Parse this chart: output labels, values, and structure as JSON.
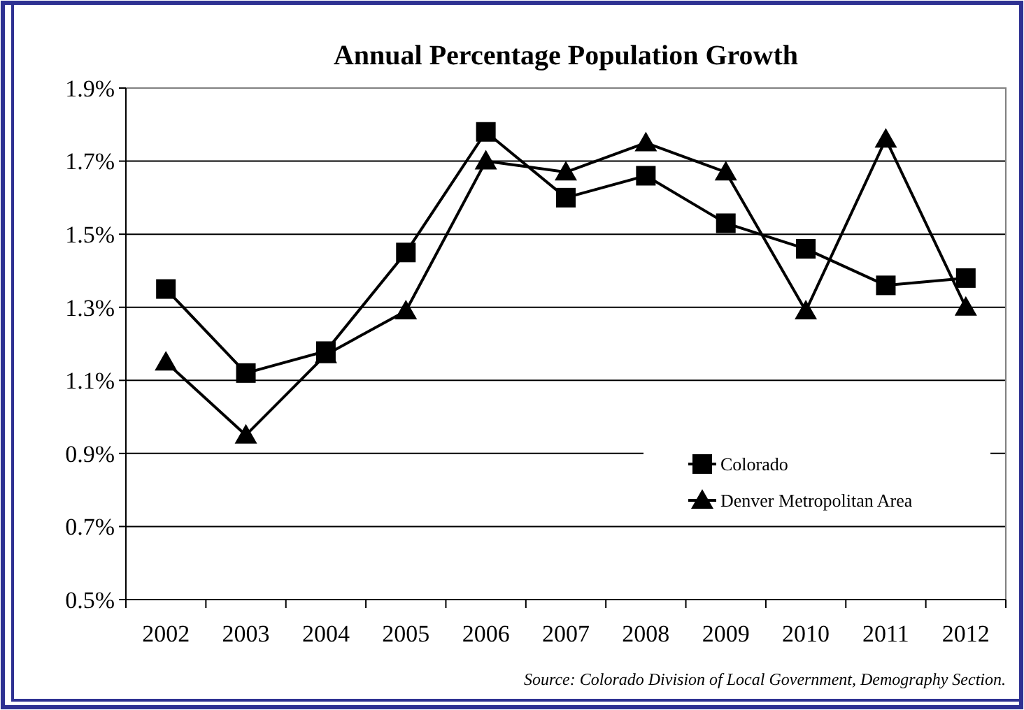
{
  "chart_data": {
    "type": "line",
    "title": "Annual Percentage Population Growth",
    "categories": [
      "2002",
      "2003",
      "2004",
      "2005",
      "2006",
      "2007",
      "2008",
      "2009",
      "2010",
      "2011",
      "2012"
    ],
    "series": [
      {
        "name": "Colorado",
        "color": "#000000",
        "marker": "square",
        "values": [
          1.35,
          1.12,
          1.18,
          1.45,
          1.78,
          1.6,
          1.66,
          1.53,
          1.46,
          1.36,
          1.38
        ]
      },
      {
        "name": "Denver Metropolitan Area",
        "color": "#000000",
        "marker": "triangle",
        "values": [
          1.15,
          0.95,
          1.17,
          1.29,
          1.7,
          1.67,
          1.75,
          1.67,
          1.29,
          1.76,
          1.3
        ]
      }
    ],
    "ylim": [
      0.5,
      1.9
    ],
    "yticks": [
      {
        "value": 0.5,
        "label": "0.5%"
      },
      {
        "value": 0.7,
        "label": "0.7%"
      },
      {
        "value": 0.9,
        "label": "0.9%"
      },
      {
        "value": 1.1,
        "label": "1.1%"
      },
      {
        "value": 1.3,
        "label": "1.3%"
      },
      {
        "value": 1.5,
        "label": "1.5%"
      },
      {
        "value": 1.7,
        "label": "1.7%"
      },
      {
        "value": 1.9,
        "label": "1.9%"
      }
    ],
    "grid": "y",
    "legend": "right",
    "line_style": "solid",
    "annotations": [
      "Source: Colorado Division of Local Government, Demography Section."
    ]
  }
}
